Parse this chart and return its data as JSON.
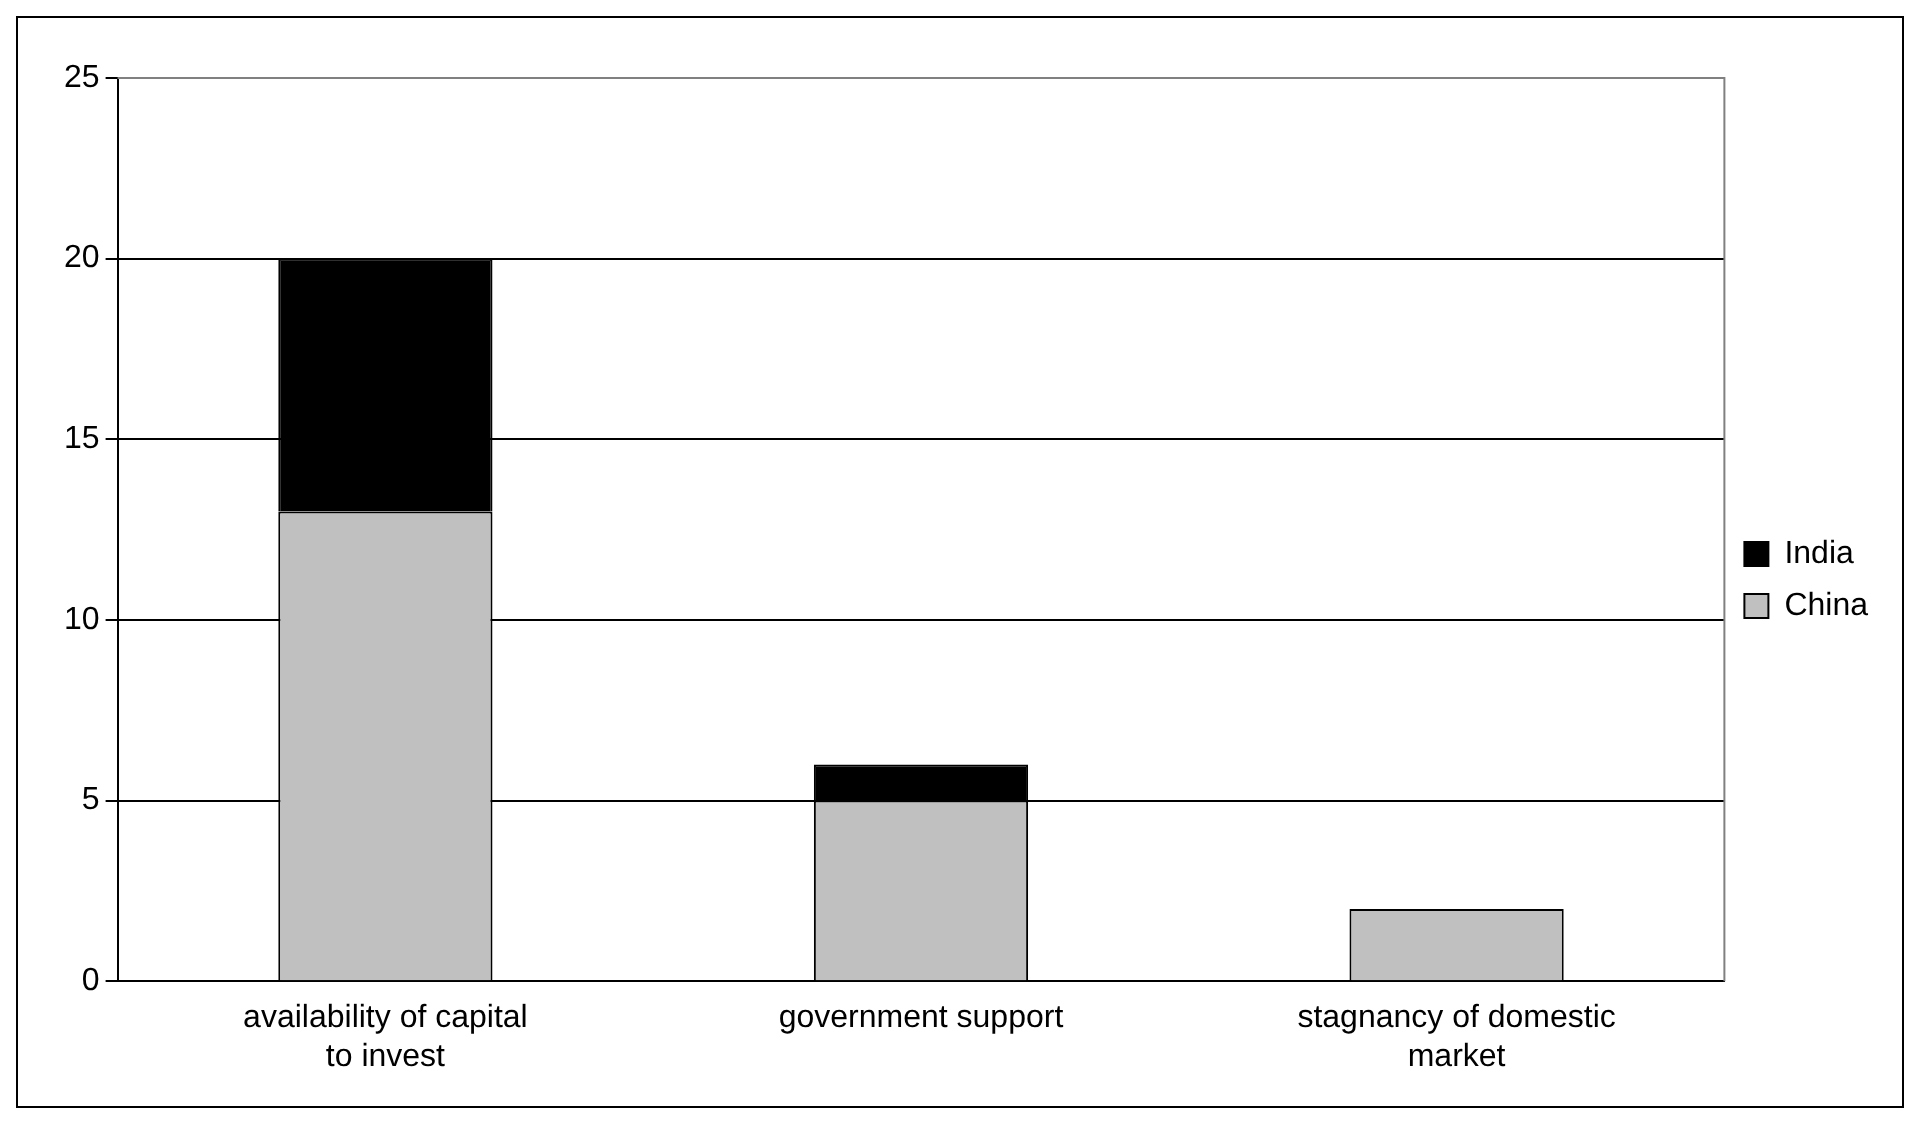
{
  "chart_data": {
    "type": "bar",
    "stacked": true,
    "categories": [
      "availability of capital to invest",
      "government support",
      "stagnancy of domestic market"
    ],
    "series": [
      {
        "name": "China",
        "color": "#c0c0c0",
        "values": [
          13,
          5,
          2
        ]
      },
      {
        "name": "India",
        "color": "#000000",
        "values": [
          7,
          1,
          0
        ]
      }
    ],
    "ylim": [
      0,
      25
    ],
    "yticks": [
      0,
      5,
      10,
      15,
      20,
      25
    ],
    "grid": "y",
    "legend": "right"
  }
}
